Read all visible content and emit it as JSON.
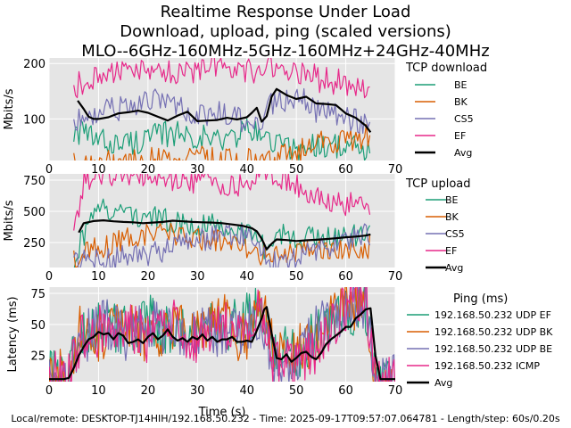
{
  "chart_data": [
    {
      "type": "line",
      "title_lines": [
        "Realtime Response Under Load",
        "Download, upload, ping (scaled versions)",
        "MLO--6GHz-160MHz-5GHz-160MHz+24GHz-40MHz"
      ],
      "ylabel": "Mbits/s",
      "xlim": [
        0,
        70
      ],
      "ylim": [
        25,
        210
      ],
      "xticks": [
        "0",
        "10",
        "20",
        "30",
        "40",
        "50",
        "60",
        "70"
      ],
      "yticks": [
        "100",
        "200"
      ],
      "legend_title": "TCP download",
      "legend_placement": "right",
      "grid": true,
      "series": [
        {
          "name": "BE",
          "color": "#1b9e77",
          "x": [
            5,
            10,
            15,
            20,
            25,
            30,
            35,
            40,
            43,
            45,
            50,
            55,
            60,
            65
          ],
          "y": [
            80,
            60,
            55,
            65,
            75,
            70,
            60,
            80,
            70,
            60,
            45,
            55,
            50,
            40
          ]
        },
        {
          "name": "BK",
          "color": "#d95f02",
          "x": [
            5,
            10,
            15,
            20,
            25,
            30,
            35,
            40,
            43,
            45,
            50,
            55,
            60,
            65
          ],
          "y": [
            20,
            22,
            20,
            28,
            30,
            28,
            25,
            25,
            22,
            30,
            40,
            55,
            60,
            70
          ]
        },
        {
          "name": "CS5",
          "color": "#7570b3",
          "x": [
            5,
            10,
            15,
            20,
            25,
            30,
            35,
            40,
            43,
            45,
            50,
            55,
            60,
            65
          ],
          "y": [
            90,
            110,
            120,
            135,
            120,
            105,
            110,
            95,
            100,
            130,
            140,
            110,
            100,
            90
          ]
        },
        {
          "name": "EF",
          "color": "#e7298a",
          "x": [
            5,
            10,
            15,
            20,
            25,
            30,
            35,
            40,
            43,
            45,
            50,
            55,
            60,
            65
          ],
          "y": [
            160,
            175,
            185,
            195,
            180,
            190,
            200,
            185,
            180,
            200,
            190,
            170,
            165,
            150
          ]
        },
        {
          "name": "Avg",
          "color": "#000000",
          "x": [
            5.8,
            7,
            8,
            9,
            10,
            12,
            14,
            16,
            18,
            20,
            22,
            24,
            26,
            28,
            30,
            32,
            34,
            36,
            38,
            40,
            41,
            42,
            43,
            44,
            45,
            46,
            48,
            50,
            52,
            54,
            56,
            58,
            60,
            62,
            64,
            65
          ],
          "y": [
            133,
            118,
            104,
            100,
            100,
            103,
            110,
            112,
            115,
            111,
            104,
            97,
            106,
            113,
            96,
            97,
            98,
            102,
            99,
            103,
            111,
            120,
            95,
            105,
            140,
            154,
            143,
            136,
            140,
            128,
            127,
            125,
            110,
            102,
            88,
            76
          ]
        }
      ]
    },
    {
      "type": "line",
      "ylabel": "Mbits/s",
      "xlim": [
        0,
        70
      ],
      "ylim": [
        50,
        800
      ],
      "xticks": [
        "0",
        "10",
        "20",
        "30",
        "40",
        "50",
        "60",
        "70"
      ],
      "yticks": [
        "250",
        "500",
        "750"
      ],
      "legend_title": "TCP upload",
      "legend_placement": "right",
      "grid": true,
      "series": [
        {
          "name": "BE",
          "color": "#1b9e77",
          "x": [
            5,
            7,
            10,
            15,
            20,
            25,
            30,
            35,
            40,
            44,
            46,
            50,
            55,
            60,
            65
          ],
          "y": [
            100,
            300,
            520,
            500,
            450,
            420,
            400,
            380,
            330,
            200,
            320,
            300,
            300,
            300,
            310
          ]
        },
        {
          "name": "BK",
          "color": "#d95f02",
          "x": [
            5,
            7,
            10,
            15,
            20,
            25,
            30,
            35,
            40,
            44,
            46,
            50,
            55,
            60,
            65
          ],
          "y": [
            100,
            220,
            180,
            280,
            300,
            320,
            280,
            250,
            200,
            150,
            160,
            180,
            190,
            200,
            220
          ]
        },
        {
          "name": "CS5",
          "color": "#7570b3",
          "x": [
            5,
            7,
            10,
            15,
            20,
            25,
            30,
            35,
            40,
            44,
            46,
            50,
            55,
            60,
            65
          ],
          "y": [
            80,
            100,
            110,
            130,
            150,
            200,
            260,
            320,
            300,
            100,
            80,
            120,
            200,
            260,
            320
          ]
        },
        {
          "name": "EF",
          "color": "#e7298a",
          "x": [
            5,
            7,
            10,
            15,
            20,
            25,
            30,
            35,
            40,
            44,
            46,
            50,
            55,
            60,
            65
          ],
          "y": [
            330,
            750,
            800,
            800,
            800,
            760,
            730,
            720,
            700,
            800,
            780,
            700,
            620,
            560,
            550
          ]
        },
        {
          "name": "Avg",
          "color": "#000000",
          "x": [
            6,
            7,
            9,
            11,
            13,
            15,
            17,
            19,
            21,
            23,
            25,
            27,
            29,
            31,
            33,
            35,
            37,
            39,
            41,
            42,
            43,
            44,
            45,
            46,
            48,
            50,
            52,
            54,
            56,
            58,
            60,
            62,
            64,
            65
          ],
          "y": [
            330,
            405,
            422,
            428,
            420,
            415,
            412,
            405,
            410,
            415,
            425,
            420,
            415,
            412,
            410,
            405,
            395,
            385,
            365,
            340,
            280,
            195,
            240,
            275,
            270,
            262,
            268,
            272,
            278,
            284,
            292,
            298,
            306,
            315
          ]
        }
      ]
    },
    {
      "type": "line",
      "ylabel": "Latency (ms)",
      "xlabel": "Time (s)",
      "xlim": [
        0,
        70
      ],
      "ylim": [
        4,
        80
      ],
      "xticks": [
        "0",
        "10",
        "20",
        "30",
        "40",
        "50",
        "60",
        "70"
      ],
      "yticks": [
        "25",
        "50",
        "75"
      ],
      "legend_title": "Ping (ms)",
      "legend_placement": "right",
      "grid": true,
      "series": [
        {
          "name": "192.168.50.232 UDP EF",
          "color": "#1b9e77",
          "x": [
            0,
            4,
            6,
            10,
            15,
            20,
            25,
            30,
            35,
            40,
            43,
            45,
            50,
            55,
            60,
            64,
            66,
            70
          ],
          "y": [
            10,
            8,
            40,
            50,
            45,
            55,
            40,
            50,
            45,
            55,
            60,
            30,
            25,
            45,
            60,
            65,
            5,
            5
          ]
        },
        {
          "name": "192.168.50.232 UDP BK",
          "color": "#d95f02",
          "x": [
            0,
            4,
            6,
            10,
            15,
            20,
            25,
            30,
            35,
            40,
            43,
            45,
            50,
            55,
            60,
            64,
            66,
            70
          ],
          "y": [
            12,
            10,
            45,
            40,
            55,
            35,
            50,
            40,
            55,
            35,
            65,
            35,
            30,
            40,
            70,
            60,
            5,
            5
          ]
        },
        {
          "name": "192.168.50.232 UDP BE",
          "color": "#7570b3",
          "x": [
            0,
            4,
            6,
            10,
            15,
            20,
            25,
            30,
            35,
            40,
            43,
            45,
            50,
            55,
            60,
            64,
            66,
            70
          ],
          "y": [
            8,
            9,
            30,
            55,
            40,
            50,
            45,
            45,
            40,
            50,
            55,
            25,
            20,
            50,
            55,
            70,
            5,
            5
          ]
        },
        {
          "name": "192.168.50.232 ICMP",
          "color": "#e7298a",
          "x": [
            0,
            4,
            6,
            10,
            15,
            20,
            25,
            30,
            35,
            40,
            43,
            45,
            50,
            55,
            60,
            64,
            66,
            70
          ],
          "y": [
            10,
            9,
            35,
            45,
            50,
            40,
            55,
            35,
            50,
            45,
            70,
            20,
            15,
            35,
            65,
            75,
            5,
            5
          ]
        },
        {
          "name": "Avg",
          "color": "#000000",
          "x": [
            0,
            3,
            4,
            5,
            6,
            7,
            8,
            9,
            10,
            11,
            12,
            13,
            14,
            15,
            16,
            17,
            18,
            19,
            20,
            21,
            22,
            23,
            24,
            25,
            26,
            27,
            28,
            29,
            30,
            31,
            32,
            33,
            34,
            35,
            36,
            37,
            38,
            39,
            40,
            41,
            42,
            43,
            43.5,
            44,
            45,
            46,
            47,
            48,
            49,
            50,
            51,
            52,
            53,
            54,
            55,
            56,
            57,
            58,
            59,
            60,
            61,
            62,
            63,
            64,
            65,
            66,
            67,
            70
          ],
          "y": [
            6,
            6,
            7,
            15,
            25,
            32,
            38,
            40,
            44,
            42,
            43,
            38,
            43,
            41,
            35,
            36,
            38,
            35,
            40,
            43,
            38,
            41,
            46,
            40,
            37,
            39,
            36,
            40,
            38,
            42,
            37,
            40,
            36,
            38,
            38,
            40,
            36,
            36,
            37,
            36,
            45,
            55,
            62,
            64,
            43,
            23,
            22,
            26,
            20,
            23,
            27,
            28,
            24,
            22,
            27,
            34,
            38,
            41,
            44,
            48,
            48,
            55,
            58,
            62,
            63,
            25,
            6,
            6
          ]
        }
      ]
    }
  ],
  "footer": {
    "text": "Local/remote: DESKTOP-TJ14HIH/192.168.50.232 - Time: 2025-09-17T09:57:07.064781 - Length/step: 60s/0.20s"
  }
}
